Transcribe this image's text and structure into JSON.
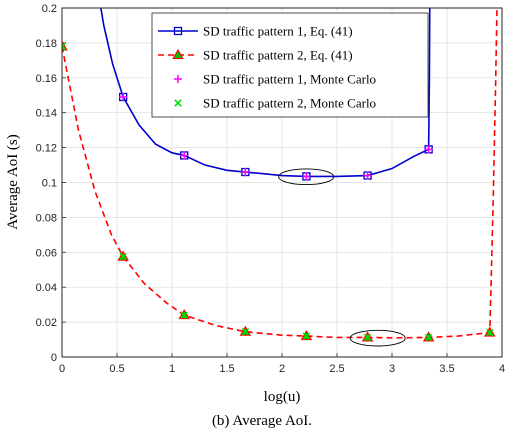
{
  "chart_data": {
    "type": "line",
    "xlabel": "log(u)",
    "ylabel": "Average AoI (s)",
    "xlim": [
      0,
      4
    ],
    "ylim": [
      0,
      0.2
    ],
    "xticks": [
      "0",
      "0.5",
      "1",
      "1.5",
      "2",
      "2.5",
      "3",
      "3.5",
      "4"
    ],
    "yticks": [
      "0",
      "0.02",
      "0.04",
      "0.06",
      "0.08",
      "0.1",
      "0.12",
      "0.14",
      "0.16",
      "0.18",
      "0.2"
    ],
    "grid": true,
    "legend_position": "top-right",
    "caption": "(b) Average AoI.",
    "series": [
      {
        "name": "SD traffic pattern 1, Eq. (41)",
        "color": "#0000cd",
        "style": "solid",
        "marker": "square",
        "curve_x": [
          0.3,
          0.38,
          0.46,
          0.556,
          0.7,
          0.85,
          1.0,
          1.111,
          1.3,
          1.5,
          1.667,
          2.0,
          2.222,
          2.5,
          2.778,
          3.0,
          3.2,
          3.333,
          3.34,
          3.345
        ],
        "curve_y": [
          0.22,
          0.19,
          0.168,
          0.149,
          0.133,
          0.122,
          0.117,
          0.1155,
          0.11,
          0.107,
          0.106,
          0.104,
          0.1035,
          0.1035,
          0.104,
          0.108,
          0.115,
          0.119,
          0.16,
          0.22
        ],
        "marker_x": [
          0.556,
          1.111,
          1.667,
          2.222,
          2.778,
          3.333
        ],
        "marker_y": [
          0.149,
          0.1155,
          0.106,
          0.1035,
          0.104,
          0.119
        ]
      },
      {
        "name": "SD traffic pattern 2, Eq. (41)",
        "color": "#ff0000",
        "style": "dashed",
        "marker": "triangle",
        "marker_face": "#00c000",
        "curve_x": [
          0.0,
          0.15,
          0.3,
          0.45,
          0.556,
          0.75,
          0.95,
          1.111,
          1.4,
          1.667,
          2.0,
          2.222,
          2.5,
          2.778,
          3.0,
          3.333,
          3.6,
          3.889,
          3.9,
          3.92,
          3.94,
          3.96
        ],
        "curve_y": [
          0.178,
          0.13,
          0.095,
          0.07,
          0.0575,
          0.042,
          0.031,
          0.024,
          0.018,
          0.0145,
          0.0125,
          0.012,
          0.0112,
          0.0112,
          0.011,
          0.0112,
          0.012,
          0.014,
          0.04,
          0.09,
          0.15,
          0.22
        ],
        "marker_x": [
          0.0,
          0.556,
          1.111,
          1.667,
          2.222,
          2.778,
          3.333,
          3.889
        ],
        "marker_y": [
          0.178,
          0.0575,
          0.024,
          0.0145,
          0.012,
          0.0112,
          0.0112,
          0.014
        ]
      },
      {
        "name": "SD traffic pattern 1, Monte Carlo",
        "color": "#ff00ff",
        "marker": "plus",
        "x": [
          0.556,
          1.111,
          1.667,
          2.222,
          2.778,
          3.333
        ],
        "y": [
          0.149,
          0.1155,
          0.106,
          0.1035,
          0.104,
          0.119
        ]
      },
      {
        "name": "SD traffic pattern 2, Monte Carlo",
        "color": "#00dd00",
        "marker": "cross",
        "x": [
          0.0,
          0.556,
          1.111,
          1.667,
          2.222,
          2.778,
          3.333,
          3.889
        ],
        "y": [
          0.178,
          0.0575,
          0.024,
          0.0145,
          0.012,
          0.0112,
          0.0112,
          0.014
        ]
      }
    ],
    "annotations": [
      {
        "shape": "ellipse",
        "cx": 2.22,
        "cy": 0.1033,
        "rx": 0.25,
        "ry": 0.0045
      },
      {
        "shape": "ellipse",
        "cx": 2.87,
        "cy": 0.0108,
        "rx": 0.25,
        "ry": 0.0045
      }
    ]
  }
}
